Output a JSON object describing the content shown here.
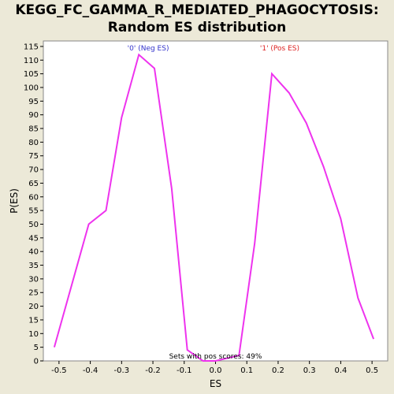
{
  "chart_data": {
    "type": "line",
    "title": "KEGG_FC_GAMMA_R_MEDIATED_PHAGOCYTOSIS:",
    "subtitle": "Random ES distribution",
    "xlabel": "ES",
    "ylabel": "P(ES)",
    "xlim": [
      -0.55,
      0.55
    ],
    "ylim": [
      0,
      117
    ],
    "xticks": [
      "-0.5",
      "-0.4",
      "-0.3",
      "-0.2",
      "-0.1",
      "0.0",
      "0.1",
      "0.2",
      "0.3",
      "0.4",
      "0.5"
    ],
    "yticks": [
      "0",
      "5",
      "10",
      "15",
      "20",
      "25",
      "30",
      "35",
      "40",
      "45",
      "50",
      "55",
      "60",
      "65",
      "70",
      "75",
      "80",
      "85",
      "90",
      "95",
      "100",
      "105",
      "110",
      "115"
    ],
    "legend": {
      "neg_label": "'0' (Neg ES)",
      "pos_label": "'1' (Pos ES)",
      "neg_color": "#3333cc",
      "pos_color": "#dd2222"
    },
    "annotation": "Sets with pos scores: 49%",
    "line_color": "#ee33ee",
    "background_color": "#ffffff",
    "series": [
      {
        "x": [
          -0.515,
          -0.405,
          -0.35,
          -0.3,
          -0.245,
          -0.195,
          -0.14,
          -0.09,
          -0.04,
          0.0,
          0.075,
          0.125,
          0.18,
          0.235,
          0.29,
          0.345,
          0.4,
          0.455,
          0.505
        ],
        "y": [
          5,
          50,
          55,
          89,
          112,
          107,
          63,
          4,
          0,
          0,
          2,
          43,
          105,
          98,
          87,
          71,
          52,
          23,
          8
        ]
      }
    ]
  }
}
